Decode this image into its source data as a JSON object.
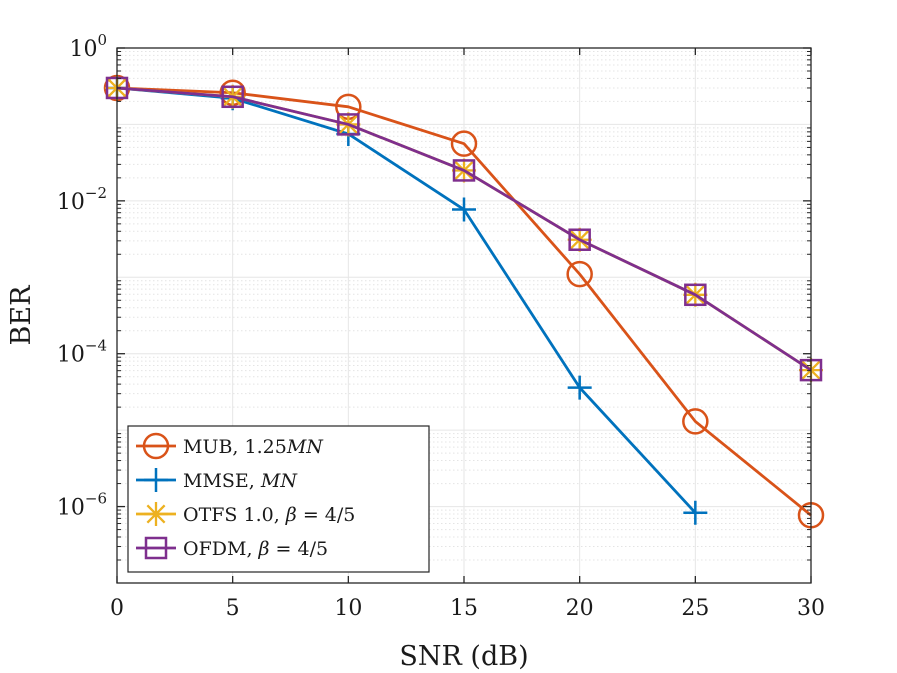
{
  "chart_data": {
    "type": "line",
    "title": "",
    "xlabel": "SNR (dB)",
    "ylabel": "BER",
    "yscale": "log",
    "xlim": [
      0,
      30
    ],
    "ylim_exp": [
      -7,
      0
    ],
    "x_ticks": [
      "0",
      "5",
      "10",
      "15",
      "20",
      "25",
      "30"
    ],
    "y_ticks": [
      {
        "base": "10",
        "exp": "0"
      },
      {
        "base": "10",
        "exp": "−2"
      },
      {
        "base": "10",
        "exp": "−4"
      },
      {
        "base": "10",
        "exp": "−6"
      }
    ],
    "grid": true,
    "minor_grid": true,
    "legend_position": "bottom-left",
    "series": [
      {
        "name": "MUB, 1.25MN",
        "legend_main": "MUB, 1.25",
        "legend_ital": "MN",
        "color": "#D95319",
        "marker": "circle",
        "x": [
          0,
          5,
          10,
          15,
          20,
          25,
          30
        ],
        "values": [
          0.3,
          0.26,
          0.17,
          0.056,
          0.0011,
          1.3e-05,
          7.7e-07
        ]
      },
      {
        "name": "MMSE, MN",
        "legend_main": "MMSE, ",
        "legend_ital": "MN",
        "color": "#0072BD",
        "marker": "plus",
        "x": [
          0,
          5,
          10,
          15,
          20,
          25
        ],
        "values": [
          0.3,
          0.22,
          0.075,
          0.0077,
          3.6e-05,
          8.3e-07
        ]
      },
      {
        "name": "OTFS 1.0, β = 4/5",
        "legend_main": "OTFS 1.0, ",
        "legend_ital": "β",
        "legend_tail": " = 4/5",
        "color": "#EDB120",
        "marker": "asterisk",
        "x": [
          0,
          5,
          10,
          15,
          20,
          25,
          30
        ],
        "values": [
          0.3,
          0.23,
          0.1,
          0.025,
          0.0031,
          0.00059,
          6.1e-05
        ]
      },
      {
        "name": "OFDM, β = 4/5",
        "legend_main": "OFDM, ",
        "legend_ital": "β",
        "legend_tail": " = 4/5",
        "color": "#7E2F8E",
        "marker": "square",
        "x": [
          0,
          5,
          10,
          15,
          20,
          25,
          30
        ],
        "values": [
          0.3,
          0.23,
          0.1,
          0.025,
          0.0031,
          0.00059,
          6.1e-05
        ]
      }
    ]
  }
}
